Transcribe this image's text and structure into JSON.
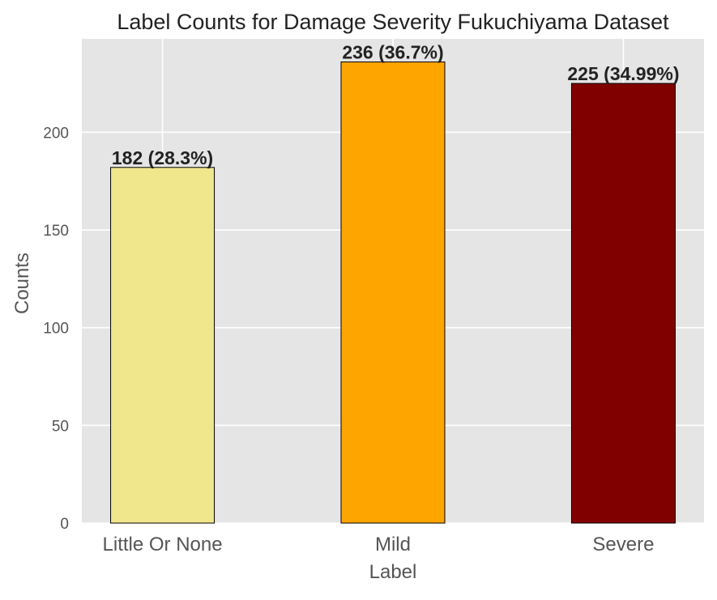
{
  "chart_data": {
    "type": "bar",
    "title": "Label Counts for Damage Severity Fukuchiyama Dataset",
    "xlabel": "Label",
    "ylabel": "Counts",
    "categories": [
      "Little Or None",
      "Mild",
      "Severe"
    ],
    "values": [
      182,
      236,
      225
    ],
    "value_labels": [
      "182 (28.3%)",
      "236 (36.7%)",
      "225 (34.99%)"
    ],
    "bar_colors": [
      "#f0e68c",
      "#ffa500",
      "#800000"
    ],
    "bar_edge_color": "#000000",
    "yticks": [
      0,
      50,
      100,
      150,
      200
    ],
    "ylim": [
      0,
      247.8
    ],
    "grid": true,
    "plot_background": "#e5e5e5",
    "grid_color": "#ffffff",
    "legend": "none"
  }
}
